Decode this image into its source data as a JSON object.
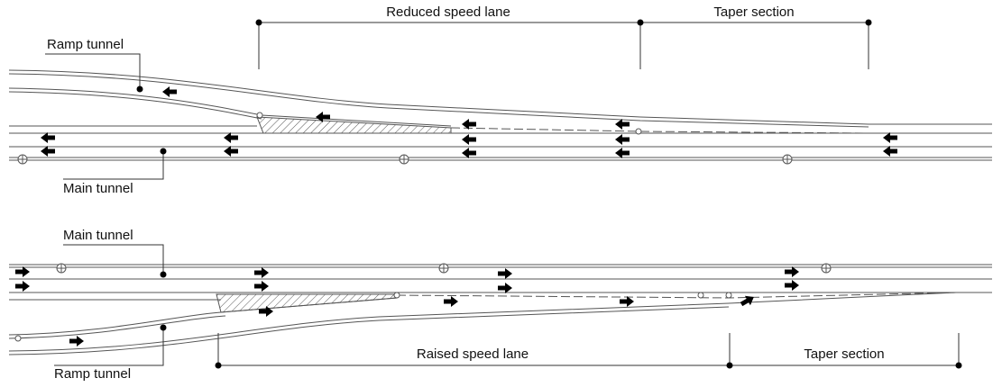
{
  "top": {
    "dimensions": [
      "Reduced speed lane",
      "Taper section"
    ],
    "callouts": [
      "Ramp tunnel",
      "Main tunnel"
    ]
  },
  "bottom": {
    "callouts": [
      "Main tunnel",
      "Ramp tunnel"
    ],
    "dimensions": [
      "Raised speed lane",
      "Taper section"
    ]
  }
}
